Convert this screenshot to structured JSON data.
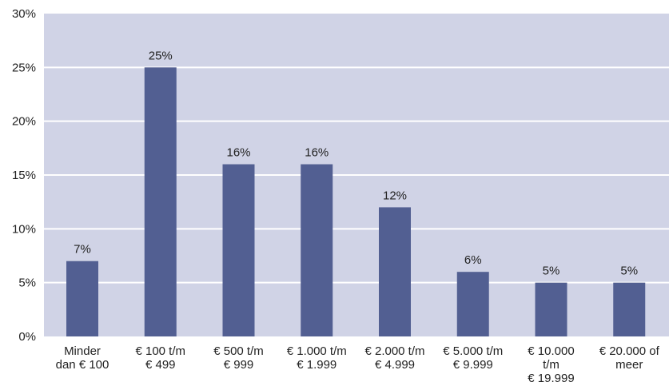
{
  "chart_data": {
    "type": "bar",
    "categories": [
      [
        "Minder",
        "dan € 100"
      ],
      [
        "€ 100 t/m",
        "€ 499"
      ],
      [
        "€ 500 t/m",
        "€ 999"
      ],
      [
        "€ 1.000 t/m",
        "€ 1.999"
      ],
      [
        "€ 2.000 t/m",
        "€ 4.999"
      ],
      [
        "€ 5.000 t/m",
        "€ 9.999"
      ],
      [
        "€ 10.000",
        "t/m",
        "€ 19.999"
      ],
      [
        "€ 20.000 of",
        "meer"
      ]
    ],
    "values": [
      7,
      25,
      16,
      16,
      12,
      6,
      5,
      5
    ],
    "data_labels": [
      "7%",
      "25%",
      "16%",
      "16%",
      "12%",
      "6%",
      "5%",
      "5%"
    ],
    "yticks": [
      "0%",
      "5%",
      "10%",
      "15%",
      "20%",
      "25%",
      "30%"
    ],
    "ylim": [
      0,
      30
    ],
    "grid": true,
    "colors": {
      "plot_background": "#d0d3e6",
      "bar": "#525f92",
      "gridline": "#ffffff"
    }
  }
}
